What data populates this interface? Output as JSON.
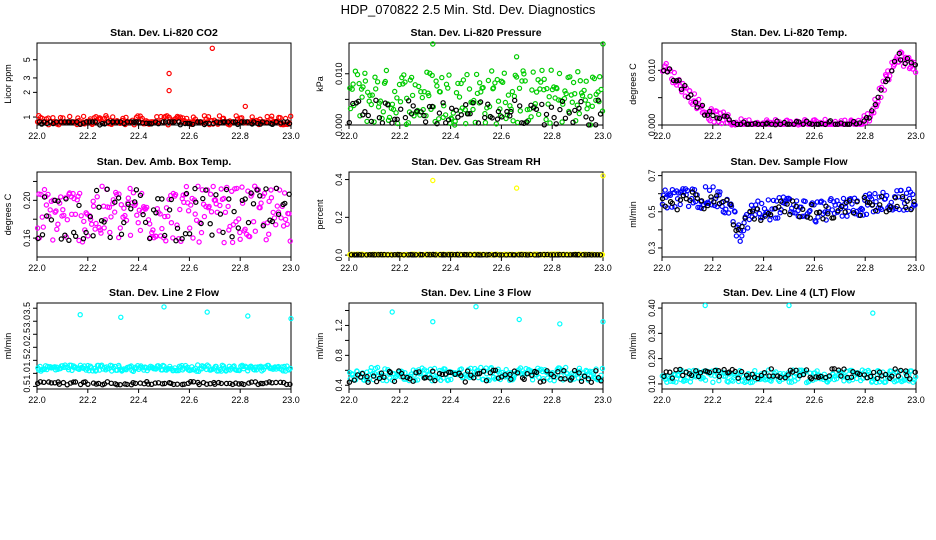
{
  "page": {
    "title": "HDP_070822  2.5 Min. Std. Dev. Diagnostics",
    "colors": {
      "background": "#ffffff",
      "axis": "#000000",
      "reference": "#000000",
      "red": "#ff0000",
      "green": "#00cc00",
      "magenta": "#ff00ff",
      "yellow": "#ffff00",
      "blue": "#0000ff",
      "cyan": "#00ffff"
    }
  },
  "chart_data": [
    {
      "type": "scatter",
      "id": "co2",
      "title": "Stan. Dev. Li-820 CO2",
      "ylabel": "Licor ppm",
      "x_range": [
        22.0,
        23.0
      ],
      "xticks": [
        22.0,
        22.2,
        22.4,
        22.6,
        22.8,
        23.0
      ],
      "yscale": "log",
      "ylim": [
        0.8,
        8.0
      ],
      "yticks": [
        1,
        2,
        3,
        5
      ],
      "series": [
        {
          "name": "main",
          "color": "#ff0000",
          "base": 0.82,
          "spread": 0.22,
          "outliers": [
            [
              22.52,
              3.4
            ],
            [
              22.52,
              2.1
            ],
            [
              22.69,
              6.9
            ],
            [
              22.82,
              1.35
            ]
          ]
        },
        {
          "name": "reference",
          "color": "#000000",
          "base": 0.8,
          "spread": 0.05
        }
      ]
    },
    {
      "type": "scatter",
      "id": "pressure",
      "title": "Stan. Dev. Li-820 Pressure",
      "ylabel": "kPa",
      "x_range": [
        22.0,
        23.0
      ],
      "xticks": [
        22.0,
        22.2,
        22.4,
        22.6,
        22.8,
        23.0
      ],
      "yscale": "linear",
      "ylim": [
        0.0,
        0.016
      ],
      "yticks": [
        0.0,
        0.005,
        0.01
      ],
      "tick_labels": [
        "0.000",
        "",
        "0.010"
      ],
      "series": [
        {
          "name": "main",
          "color": "#00cc00",
          "base": 0.0055,
          "spread": 0.0055,
          "outliers": [
            [
              22.33,
              0.0158
            ],
            [
              22.66,
              0.0133
            ],
            [
              23.0,
              0.0158
            ]
          ]
        },
        {
          "name": "reference",
          "color": "#000000",
          "base": 0.0025,
          "spread": 0.0025
        }
      ]
    },
    {
      "type": "scatter",
      "id": "temp",
      "title": "Stan. Dev. Li-820 Temp.",
      "ylabel": "degrees C",
      "x_range": [
        22.0,
        23.0
      ],
      "xticks": [
        22.0,
        22.2,
        22.4,
        22.6,
        22.8,
        23.0
      ],
      "yscale": "linear",
      "ylim": [
        0.0,
        0.015
      ],
      "yticks": [
        0.0,
        0.005,
        0.01
      ],
      "tick_labels": [
        "0.000",
        "",
        "0.010"
      ],
      "series": [
        {
          "name": "main",
          "color": "#ff00ff",
          "profile": [
            [
              22.0,
              0.011
            ],
            [
              22.1,
              0.006
            ],
            [
              22.18,
              0.002
            ],
            [
              22.24,
              0.0012
            ],
            [
              22.3,
              0.0
            ],
            [
              22.78,
              0.0
            ],
            [
              22.82,
              0.002
            ],
            [
              22.88,
              0.008
            ],
            [
              22.93,
              0.0125
            ],
            [
              23.0,
              0.0105
            ]
          ],
          "spread": 0.0012
        },
        {
          "name": "reference",
          "color": "#000000",
          "profile": [
            [
              22.0,
              0.011
            ],
            [
              22.1,
              0.006
            ],
            [
              22.18,
              0.002
            ],
            [
              22.24,
              0.0012
            ],
            [
              22.3,
              0.0
            ],
            [
              22.78,
              0.0
            ],
            [
              22.82,
              0.002
            ],
            [
              22.88,
              0.008
            ],
            [
              22.93,
              0.0125
            ],
            [
              23.0,
              0.0105
            ]
          ],
          "spread": 0.0008
        }
      ]
    },
    {
      "type": "scatter",
      "id": "ambbox",
      "title": "Stan. Dev. Amb. Box Temp.",
      "ylabel": "degrees C",
      "x_range": [
        22.0,
        23.0
      ],
      "xticks": [
        22.0,
        22.2,
        22.4,
        22.6,
        22.8,
        23.0
      ],
      "yscale": "linear",
      "ylim": [
        0.14,
        0.23
      ],
      "yticks": [
        0.16,
        0.18,
        0.2,
        0.22
      ],
      "tick_labels": [
        "0.16",
        "",
        "0.20",
        ""
      ],
      "series": [
        {
          "name": "main",
          "color": "#ff00ff",
          "base": 0.185,
          "spread": 0.03
        },
        {
          "name": "reference",
          "color": "#000000",
          "base": 0.185,
          "spread": 0.028
        }
      ]
    },
    {
      "type": "scatter",
      "id": "rh",
      "title": "Stan. Dev. Gas Stream RH",
      "ylabel": "percent",
      "x_range": [
        22.0,
        23.0
      ],
      "xticks": [
        22.0,
        22.2,
        22.4,
        22.6,
        22.8,
        23.0
      ],
      "yscale": "linear",
      "ylim": [
        -0.01,
        0.44
      ],
      "yticks": [
        0.0,
        0.2,
        0.4
      ],
      "tick_labels": [
        "0.0",
        "0.2",
        "0.4"
      ],
      "series": [
        {
          "name": "main",
          "color": "#ffff00",
          "base": 0.003,
          "spread": 0.002,
          "outliers": [
            [
              22.33,
              0.395
            ],
            [
              22.66,
              0.355
            ],
            [
              23.0,
              0.42
            ],
            [
              22.01,
              0.0
            ]
          ]
        },
        {
          "name": "reference",
          "color": "#000000",
          "base": 0.002,
          "spread": 0.001
        }
      ]
    },
    {
      "type": "scatter",
      "id": "sampleflow",
      "title": "Stan. Dev. Sample Flow",
      "ylabel": "ml/min",
      "x_range": [
        22.0,
        23.0
      ],
      "xticks": [
        22.0,
        22.2,
        22.4,
        22.6,
        22.8,
        23.0
      ],
      "yscale": "linear",
      "ylim": [
        0.25,
        0.72
      ],
      "yticks": [
        0.3,
        0.4,
        0.5,
        0.6,
        0.7
      ],
      "tick_labels": [
        "0.3",
        "",
        "0.5",
        "",
        "0.7"
      ],
      "series": [
        {
          "name": "main",
          "color": "#0000ff",
          "profile": [
            [
              22.0,
              0.57
            ],
            [
              22.2,
              0.58
            ],
            [
              22.27,
              0.52
            ],
            [
              22.31,
              0.35
            ],
            [
              22.35,
              0.5
            ],
            [
              22.5,
              0.53
            ],
            [
              22.6,
              0.5
            ],
            [
              22.8,
              0.54
            ],
            [
              23.0,
              0.57
            ]
          ],
          "spread": 0.06
        },
        {
          "name": "reference",
          "color": "#000000",
          "profile": [
            [
              22.0,
              0.55
            ],
            [
              22.2,
              0.57
            ],
            [
              22.27,
              0.5
            ],
            [
              22.31,
              0.36
            ],
            [
              22.35,
              0.49
            ],
            [
              22.5,
              0.52
            ],
            [
              22.6,
              0.5
            ],
            [
              22.8,
              0.53
            ],
            [
              23.0,
              0.56
            ]
          ],
          "spread": 0.05
        }
      ]
    },
    {
      "type": "scatter",
      "id": "line2",
      "title": "Stan. Dev. Line 2 Flow",
      "ylabel": "ml/min",
      "x_range": [
        22.0,
        23.0
      ],
      "xticks": [
        22.0,
        22.2,
        22.4,
        22.6,
        22.8,
        23.0
      ],
      "yscale": "linear",
      "ylim": [
        0.4,
        3.7
      ],
      "yticks": [
        0.5,
        1.0,
        1.5,
        2.0,
        2.5,
        3.0,
        3.5
      ],
      "tick_labels": [
        "0.5",
        "1.0",
        "1.5",
        "2.0",
        "2.5",
        "3.0",
        "3.5"
      ],
      "series": [
        {
          "name": "main",
          "color": "#00ffff",
          "base": 1.2,
          "spread": 0.12,
          "outliers": [
            [
              22.17,
              3.25
            ],
            [
              22.33,
              3.15
            ],
            [
              22.5,
              3.55
            ],
            [
              22.67,
              3.35
            ],
            [
              22.83,
              3.2
            ],
            [
              23.0,
              3.1
            ]
          ]
        },
        {
          "name": "reference",
          "color": "#000000",
          "base": 0.62,
          "spread": 0.06
        }
      ]
    },
    {
      "type": "scatter",
      "id": "line3",
      "title": "Stan. Dev. Line 3 Flow",
      "ylabel": "ml/min",
      "x_range": [
        22.0,
        23.0
      ],
      "xticks": [
        22.0,
        22.2,
        22.4,
        22.6,
        22.8,
        23.0
      ],
      "yscale": "linear",
      "ylim": [
        0.35,
        1.5
      ],
      "yticks": [
        0.4,
        0.6,
        0.8,
        1.0,
        1.2,
        1.4
      ],
      "tick_labels": [
        "0.4",
        "",
        "0.8",
        "",
        "1.2",
        ""
      ],
      "series": [
        {
          "name": "main",
          "color": "#00ffff",
          "base": 0.55,
          "spread": 0.09,
          "outliers": [
            [
              22.17,
              1.38
            ],
            [
              22.33,
              1.25
            ],
            [
              22.5,
              1.45
            ],
            [
              22.67,
              1.28
            ],
            [
              22.83,
              1.22
            ],
            [
              23.0,
              1.25
            ]
          ]
        },
        {
          "name": "reference",
          "color": "#000000",
          "base": 0.52,
          "spread": 0.08
        }
      ]
    },
    {
      "type": "scatter",
      "id": "line4",
      "title": "Stan. Dev. Line 4 (LT) Flow",
      "ylabel": "ml/min",
      "x_range": [
        22.0,
        23.0
      ],
      "xticks": [
        22.0,
        22.2,
        22.4,
        22.6,
        22.8,
        23.0
      ],
      "yscale": "linear",
      "ylim": [
        0.08,
        0.42
      ],
      "yticks": [
        0.1,
        0.2,
        0.3,
        0.4
      ],
      "tick_labels": [
        "0.10",
        "0.20",
        "0.30",
        "0.40"
      ],
      "series": [
        {
          "name": "main",
          "color": "#00ffff",
          "base": 0.13,
          "spread": 0.025,
          "outliers": [
            [
              22.17,
              0.41
            ],
            [
              22.5,
              0.41
            ],
            [
              22.83,
              0.38
            ]
          ]
        },
        {
          "name": "reference",
          "color": "#000000",
          "base": 0.14,
          "spread": 0.02
        }
      ]
    }
  ]
}
